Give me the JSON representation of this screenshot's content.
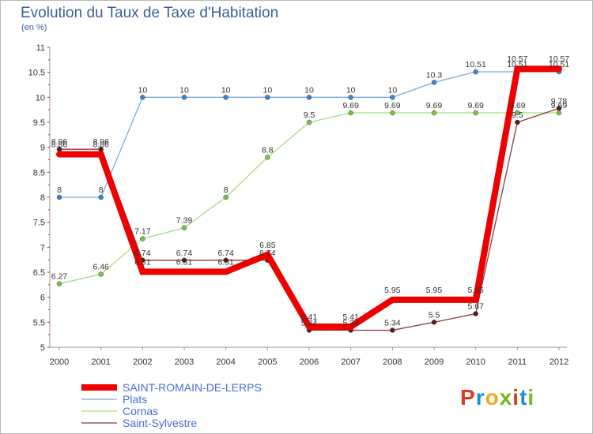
{
  "title": "Evolution du Taux de Taxe d'Habitation",
  "subtitle": "(en %)",
  "logo": {
    "text": "Proxiti",
    "colors": [
      "#e03a1e",
      "#1b8fd1",
      "#f0a81c",
      "#7ab51d",
      "#e03a1e",
      "#1b8fd1",
      "#7ab51d"
    ]
  },
  "chart_data": {
    "type": "line",
    "x": [
      "2000",
      "2001",
      "2002",
      "2003",
      "2004",
      "2005",
      "2006",
      "2007",
      "2008",
      "2009",
      "2010",
      "2011",
      "2012"
    ],
    "ylim": [
      5,
      11
    ],
    "yticks": [
      "5",
      "5.5",
      "6",
      "6.5",
      "7",
      "7.5",
      "8",
      "8.5",
      "9",
      "9.5",
      "10",
      "10.5",
      "11"
    ],
    "grid": false,
    "legend_position": "bottom-left",
    "series": [
      {
        "name": "SAINT-ROMAIN-DE-LERPS",
        "color": "#ee0000",
        "width": 8,
        "marker": "#ee0000",
        "values": [
          8.86,
          8.86,
          6.51,
          6.51,
          6.51,
          6.85,
          5.41,
          5.41,
          5.95,
          5.95,
          5.95,
          10.57,
          10.57
        ],
        "labels": [
          "8.86",
          "8.86",
          "6.51",
          "6.51",
          "6.51",
          "6.85",
          "5.41",
          "5.41",
          "5.95",
          "5.95",
          "5.95",
          "10.57",
          "10.57"
        ]
      },
      {
        "name": "Plats",
        "color": "#7aaed8",
        "width": 1.3,
        "marker": "#3f84c6",
        "values": [
          8,
          8,
          10,
          10,
          10,
          10,
          10,
          10,
          10,
          10.3,
          10.51,
          10.51,
          10.51
        ],
        "labels": [
          "8",
          "8",
          "10",
          "10",
          "10",
          "10",
          "10",
          "10",
          "10",
          "10.3",
          "10.51",
          "10.51",
          "10.51"
        ]
      },
      {
        "name": "Cornas",
        "color": "#a8dc80",
        "width": 1.3,
        "marker": "#7cc242",
        "values": [
          6.27,
          6.46,
          7.17,
          7.39,
          8,
          8.8,
          9.5,
          9.69,
          9.69,
          9.69,
          9.69,
          9.69,
          9.69
        ],
        "labels": [
          "6.27",
          "6.46",
          "7.17",
          "7.39",
          "8",
          "8.8",
          "9.5",
          "9.69",
          "9.69",
          "9.69",
          "9.69",
          "9.69",
          "9.69"
        ]
      },
      {
        "name": "Saint-Sylvestre",
        "color": "#8a3a3a",
        "width": 1.3,
        "marker": "#5c1a1a",
        "values": [
          8.96,
          8.96,
          6.74,
          6.74,
          6.74,
          6.74,
          5.34,
          5.34,
          5.34,
          5.5,
          5.67,
          9.5,
          9.78
        ],
        "labels": [
          "8.96",
          "8.96",
          "6.74",
          "6.74",
          "6.74",
          "6.74",
          "5.34",
          "5.34",
          "5.34",
          "5.5",
          "5.67",
          "9.5",
          "9.78"
        ]
      }
    ]
  }
}
